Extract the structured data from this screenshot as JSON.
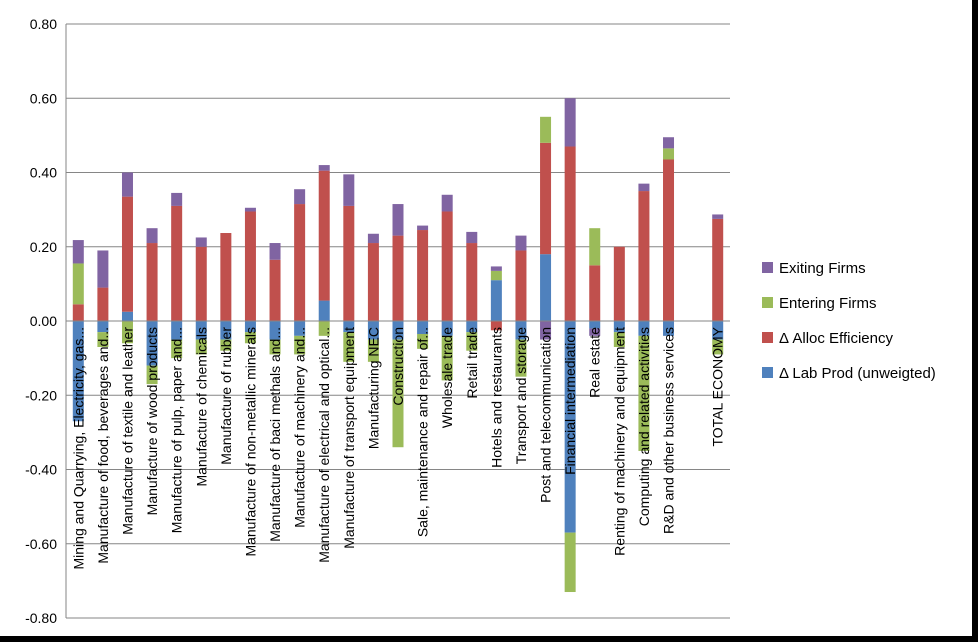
{
  "chart_data": {
    "type": "bar",
    "stacked": true,
    "title": "",
    "xlabel": "",
    "ylabel": "",
    "ylim": [
      -0.8,
      0.8
    ],
    "y_tick_step": 0.2,
    "grid": true,
    "legend_position": "right",
    "categories": [
      "Mining and Quarrying, Electricity, gas...",
      "Manufacture of food, beverages and...",
      "Manufacture of textile  and leather",
      "Manufacture of wood products",
      "Manufacture of pulp, paper and...",
      "Manufacture of chemicals",
      "Manufacture of rubber",
      "Manufacture of non-metallic minerals",
      "Manufacture of baci methals and...",
      "Manufacture of machinery and...",
      "Manufacture of electrical and optical...",
      "Manufacture of transport equipment",
      "Manufacturing NEC",
      "Construction",
      "Sale, maintenance and repair of...",
      "Wholesale trade",
      "Retail trade",
      "Hotels and restaurants",
      "Transport and storage",
      "Post and telecommunication",
      "Financial intermediation",
      "Real estate",
      "Renting of machinery and equipment",
      "Computing and related activities",
      "R&D and other business services",
      "",
      "TOTAL ECONOMY"
    ],
    "series": [
      {
        "name": "Δ Lab Prod (unweigted)",
        "color": "#4F81BD",
        "values": [
          -0.27,
          -0.03,
          0.025,
          -0.12,
          -0.05,
          -0.05,
          -0.05,
          -0.03,
          -0.05,
          -0.04,
          0.055,
          -0.03,
          -0.05,
          -0.05,
          -0.035,
          -0.04,
          -0.03,
          0.11,
          -0.05,
          0.18,
          -0.57,
          -0.02,
          -0.03,
          -0.04,
          -0.04,
          0,
          -0.05
        ]
      },
      {
        "name": "Δ Alloc Efficiency",
        "color": "#C0504D",
        "values": [
          0.045,
          0.09,
          0.31,
          0.21,
          0.31,
          0.2,
          0.237,
          0.295,
          0.165,
          0.315,
          0.35,
          0.31,
          0.21,
          0.23,
          0.245,
          0.295,
          0.21,
          -0.025,
          0.19,
          0.3,
          0.47,
          0.15,
          0.2,
          0.35,
          0.435,
          0,
          0.275
        ]
      },
      {
        "name": "Entering Firms",
        "color": "#9BBB59",
        "values": [
          0.11,
          -0.04,
          -0.06,
          -0.05,
          -0.05,
          -0.04,
          -0.03,
          -0.03,
          -0.04,
          -0.05,
          -0.04,
          -0.08,
          -0.06,
          -0.29,
          -0.04,
          -0.12,
          -0.05,
          0.025,
          -0.1,
          0.07,
          -0.16,
          0.1,
          -0.04,
          -0.31,
          0.03,
          0,
          -0.04
        ]
      },
      {
        "name": "Exiting Firms",
        "color": "#8064A2",
        "values": [
          0.063,
          0.1,
          0.065,
          0.04,
          0.035,
          0.025,
          0.0,
          0.01,
          0.045,
          0.04,
          0.015,
          0.085,
          0.025,
          0.085,
          0.012,
          0.045,
          0.03,
          0.012,
          0.04,
          -0.05,
          0.13,
          -0.02,
          0.0,
          0.02,
          0.03,
          0,
          0.012
        ]
      }
    ]
  }
}
